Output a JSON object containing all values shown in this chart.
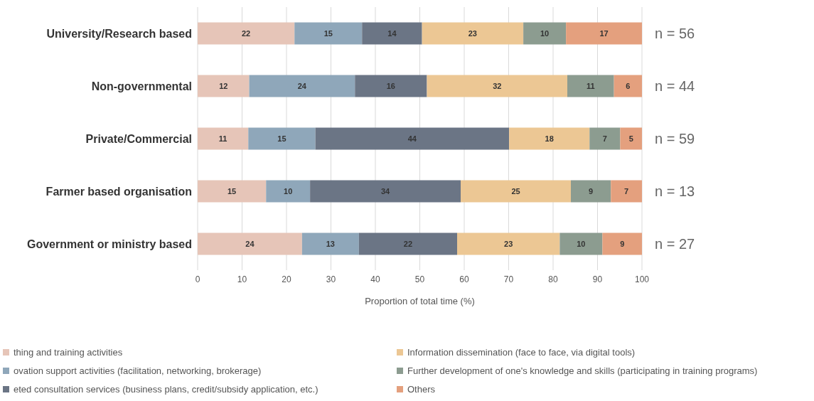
{
  "chart_data": {
    "type": "bar",
    "orientation": "horizontal",
    "stacked": true,
    "xlabel": "Proportion of total time (%)",
    "categories": [
      "University/Research based",
      "Non-governmental",
      "Private/Commercial",
      "Farmer based organisation",
      "Government or ministry based"
    ],
    "series": [
      {
        "name": "thing and training activities",
        "color": "#e6c5b8",
        "values": [
          21.8,
          11.6,
          11.4,
          15.4,
          23.5
        ],
        "value_labels": [
          "22",
          "12",
          "11",
          "15",
          "24"
        ]
      },
      {
        "name": "ovation support activities (facilitation, networking, brokerage)",
        "color": "#8fa7ba",
        "values": [
          15.2,
          23.8,
          15.1,
          9.9,
          12.8
        ],
        "value_labels": [
          "15",
          "24",
          "15",
          "10",
          "13"
        ]
      },
      {
        "name": "eted consultation services (business plans, credit/subsidy application, etc.)",
        "color": "#6b7585",
        "values": [
          13.5,
          16.2,
          43.6,
          33.9,
          22.1
        ],
        "value_labels": [
          "14",
          "16",
          "44",
          "34",
          "22"
        ]
      },
      {
        "name": "Information dissemination (face to face, via digital tools)",
        "color": "#ecc794",
        "values": [
          22.8,
          31.6,
          18.1,
          24.8,
          23.1
        ],
        "value_labels": [
          "23",
          "32",
          "18",
          "25",
          "23"
        ]
      },
      {
        "name": "Further development of one's knowledge and skills (participating in training programs)",
        "color": "#8c9c90",
        "values": [
          9.6,
          10.5,
          6.9,
          9.0,
          9.6
        ],
        "value_labels": [
          "10",
          "11",
          "7",
          "9",
          "10"
        ]
      },
      {
        "name": "Others",
        "color": "#e4a07e",
        "values": [
          17.1,
          6.3,
          4.9,
          7.0,
          8.9
        ],
        "value_labels": [
          "17",
          "6",
          "5",
          "7",
          "9"
        ]
      }
    ],
    "xlim": [
      0,
      100
    ],
    "xticks": [
      0,
      10,
      20,
      30,
      40,
      50,
      60,
      70,
      80,
      90,
      100
    ],
    "grid": "x",
    "legend": "bottom",
    "annotations": [
      "n = 56",
      "n = 44",
      "n = 59",
      "n = 13",
      "n = 27"
    ]
  }
}
